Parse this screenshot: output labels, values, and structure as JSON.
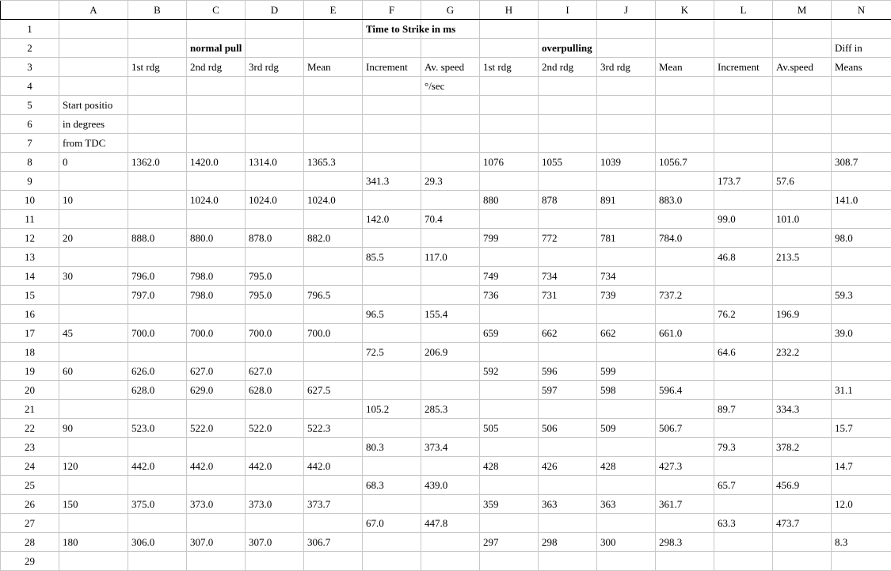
{
  "columns": [
    "A",
    "B",
    "C",
    "D",
    "E",
    "F",
    "G",
    "H",
    "I",
    "J",
    "K",
    "L",
    "M",
    "N"
  ],
  "rows": [
    {
      "label": "1",
      "cells": {
        "F": "Time to Strike in ms"
      }
    },
    {
      "label": "2",
      "cells": {
        "C": "normal pull",
        "I": "overpulling",
        "N": "Diff in"
      }
    },
    {
      "label": "3",
      "cells": {
        "B": "1st rdg",
        "C": "2nd rdg",
        "D": "3rd rdg",
        "E": "Mean",
        "F": "Increment",
        "G": "Av. speed",
        "H": "1st rdg",
        "I": "2nd rdg",
        "J": "3rd rdg",
        "K": "Mean",
        "L": "Increment",
        "M": "Av.speed",
        "N": "Means"
      }
    },
    {
      "label": "4",
      "cells": {
        "G": "°/sec"
      }
    },
    {
      "label": "5",
      "cells": {
        "A": "Start positio"
      }
    },
    {
      "label": "6",
      "cells": {
        "A": "in degrees"
      }
    },
    {
      "label": "7",
      "cells": {
        "A": "from TDC"
      }
    },
    {
      "label": "8",
      "cells": {
        "A": "0",
        "B": "1362.0",
        "C": "1420.0",
        "D": "1314.0",
        "E": "1365.3",
        "H": "1076",
        "I": "1055",
        "J": "1039",
        "K": "1056.7",
        "N": "308.7"
      }
    },
    {
      "label": "9",
      "cells": {
        "F": "341.3",
        "G": "29.3",
        "L": "173.7",
        "M": "57.6"
      }
    },
    {
      "label": "10",
      "cells": {
        "A": "10",
        "C": "1024.0",
        "D": "1024.0",
        "E": "1024.0",
        "H": "880",
        "I": "878",
        "J": "891",
        "K": "883.0",
        "N": "141.0"
      }
    },
    {
      "label": "11",
      "cells": {
        "F": "142.0",
        "G": "70.4",
        "L": "99.0",
        "M": "101.0"
      }
    },
    {
      "label": "12",
      "cells": {
        "A": "20",
        "B": "888.0",
        "C": "880.0",
        "D": "878.0",
        "E": "882.0",
        "H": "799",
        "I": "772",
        "J": "781",
        "K": "784.0",
        "N": "98.0"
      }
    },
    {
      "label": "13",
      "cells": {
        "F": "85.5",
        "G": "117.0",
        "L": "46.8",
        "M": "213.5"
      }
    },
    {
      "label": "14",
      "cells": {
        "A": "30",
        "B": "796.0",
        "C": "798.0",
        "D": "795.0",
        "H": "749",
        "I": "734",
        "J": "734"
      }
    },
    {
      "label": "15",
      "cells": {
        "B": "797.0",
        "C": "798.0",
        "D": "795.0",
        "E": "796.5",
        "H": "736",
        "I": "731",
        "J": "739",
        "K": "737.2",
        "N": "59.3"
      }
    },
    {
      "label": "16",
      "cells": {
        "F": "96.5",
        "G": "155.4",
        "L": "76.2",
        "M": "196.9"
      }
    },
    {
      "label": "17",
      "cells": {
        "A": "45",
        "B": "700.0",
        "C": "700.0",
        "D": "700.0",
        "E": "700.0",
        "H": "659",
        "I": "662",
        "J": "662",
        "K": "661.0",
        "N": "39.0"
      }
    },
    {
      "label": "18",
      "cells": {
        "F": "72.5",
        "G": "206.9",
        "L": "64.6",
        "M": "232.2"
      }
    },
    {
      "label": "19",
      "cells": {
        "A": "60",
        "B": "626.0",
        "C": "627.0",
        "D": "627.0",
        "H": "592",
        "I": "596",
        "J": "599"
      }
    },
    {
      "label": "20",
      "cells": {
        "B": "628.0",
        "C": "629.0",
        "D": "628.0",
        "E": "627.5",
        "I": "597",
        "J": "598",
        "K": "596.4",
        "N": "31.1"
      }
    },
    {
      "label": "21",
      "cells": {
        "F": "105.2",
        "G": "285.3",
        "L": "89.7",
        "M": "334.3"
      }
    },
    {
      "label": "22",
      "cells": {
        "A": "90",
        "B": "523.0",
        "C": "522.0",
        "D": "522.0",
        "E": "522.3",
        "H": "505",
        "I": "506",
        "J": "509",
        "K": "506.7",
        "N": "15.7"
      }
    },
    {
      "label": "23",
      "cells": {
        "F": "80.3",
        "G": "373.4",
        "L": "79.3",
        "M": "378.2"
      }
    },
    {
      "label": "24",
      "cells": {
        "A": "120",
        "B": "442.0",
        "C": "442.0",
        "D": "442.0",
        "E": "442.0",
        "H": "428",
        "I": "426",
        "J": "428",
        "K": "427.3",
        "N": "14.7"
      }
    },
    {
      "label": "25",
      "cells": {
        "F": "68.3",
        "G": "439.0",
        "L": "65.7",
        "M": "456.9"
      }
    },
    {
      "label": "26",
      "cells": {
        "A": "150",
        "B": "375.0",
        "C": "373.0",
        "D": "373.0",
        "E": "373.7",
        "H": "359",
        "I": "363",
        "J": "363",
        "K": "361.7",
        "N": "12.0"
      }
    },
    {
      "label": "27",
      "cells": {
        "F": "67.0",
        "G": "447.8",
        "L": "63.3",
        "M": "473.7"
      }
    },
    {
      "label": "28",
      "cells": {
        "A": "180",
        "B": "306.0",
        "C": "307.0",
        "D": "307.0",
        "E": "306.7",
        "H": "297",
        "I": "298",
        "J": "300",
        "K": "298.3",
        "N": "8.3"
      }
    },
    {
      "label": "29",
      "cells": {}
    }
  ]
}
